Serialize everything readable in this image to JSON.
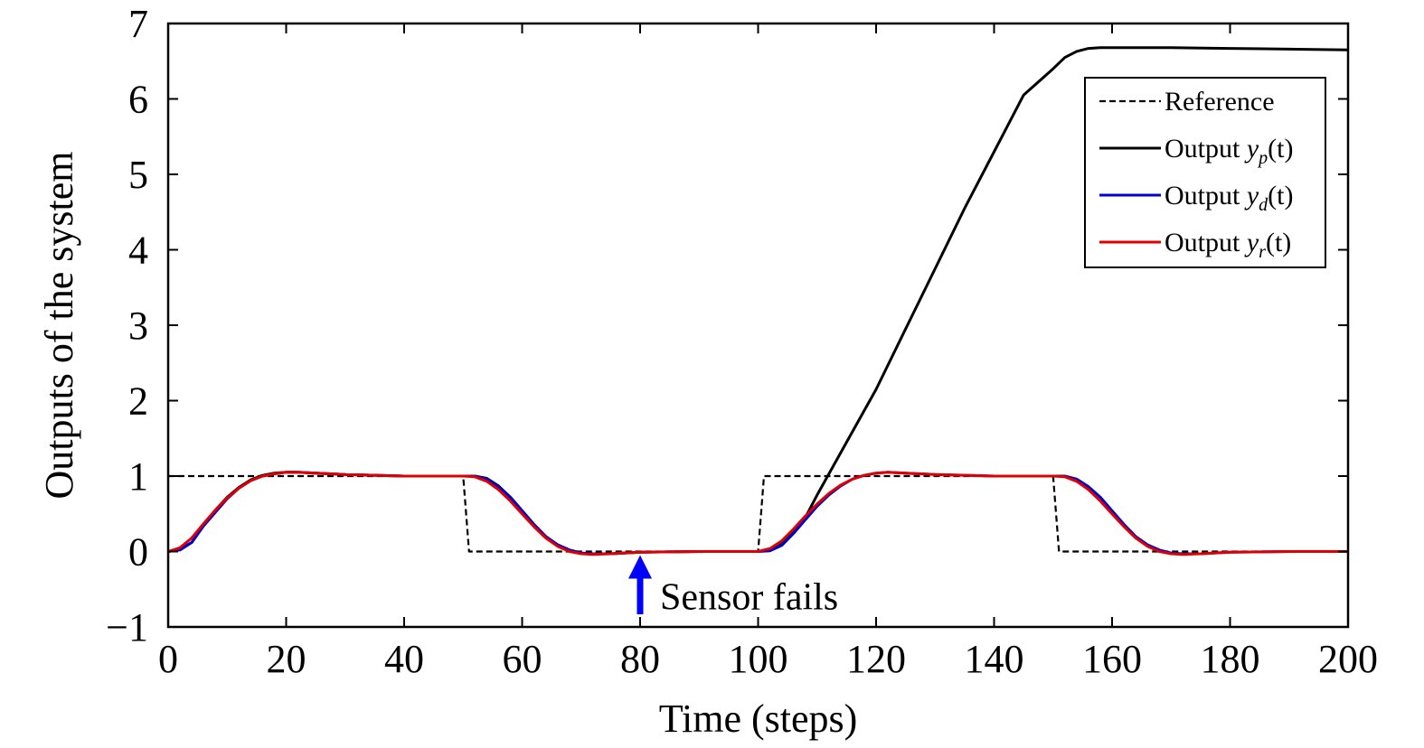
{
  "chart_data": {
    "type": "line",
    "title": "",
    "xlabel": "Time (steps)",
    "ylabel": "Outputs of the system",
    "xlim": [
      0,
      200
    ],
    "ylim": [
      -1,
      7
    ],
    "xticks": [
      0,
      20,
      40,
      60,
      80,
      100,
      120,
      140,
      160,
      180,
      200
    ],
    "yticks": [
      -1,
      0,
      1,
      2,
      3,
      4,
      5,
      6,
      7
    ],
    "xtick_labels": [
      "0",
      "20",
      "40",
      "60",
      "80",
      "100",
      "120",
      "140",
      "160",
      "180",
      "200"
    ],
    "ytick_labels": [
      "−1",
      "0",
      "1",
      "2",
      "3",
      "4",
      "5",
      "6",
      "7"
    ],
    "grid": false,
    "legend_position": "top-right",
    "series": [
      {
        "name": "Reference",
        "color": "#000000",
        "style": "dashed",
        "x": [
          0,
          50,
          51,
          100,
          101,
          150,
          151,
          200
        ],
        "y": [
          1,
          1,
          0,
          0,
          1,
          1,
          0,
          0
        ]
      },
      {
        "name": "Output y_p(t)",
        "color": "#000000",
        "style": "solid",
        "x": [
          0,
          2,
          4,
          6,
          8,
          10,
          12,
          14,
          16,
          18,
          20,
          22,
          25,
          30,
          40,
          50,
          52,
          54,
          56,
          58,
          60,
          62,
          64,
          66,
          68,
          70,
          72,
          75,
          80,
          90,
          100,
          102,
          104,
          106,
          108,
          110,
          115,
          120,
          125,
          130,
          135,
          140,
          145,
          150,
          152,
          154,
          156,
          158,
          160,
          165,
          170,
          180,
          190,
          200
        ],
        "y": [
          0,
          0.03,
          0.12,
          0.35,
          0.55,
          0.72,
          0.85,
          0.95,
          1.01,
          1.04,
          1.05,
          1.05,
          1.04,
          1.02,
          1.0,
          1.0,
          1.0,
          0.97,
          0.87,
          0.72,
          0.54,
          0.36,
          0.2,
          0.09,
          0.02,
          -0.02,
          -0.03,
          -0.03,
          -0.01,
          0.0,
          0.0,
          0.02,
          0.1,
          0.25,
          0.45,
          0.75,
          1.45,
          2.15,
          2.95,
          3.75,
          4.55,
          5.3,
          6.05,
          6.4,
          6.55,
          6.63,
          6.67,
          6.68,
          6.68,
          6.68,
          6.68,
          6.67,
          6.66,
          6.65
        ]
      },
      {
        "name": "Output y_d(t)",
        "color": "#0000cc",
        "style": "solid",
        "x": [
          0,
          2,
          4,
          6,
          8,
          10,
          12,
          14,
          16,
          18,
          20,
          22,
          25,
          30,
          40,
          50,
          52,
          54,
          56,
          58,
          60,
          62,
          64,
          66,
          68,
          70,
          72,
          75,
          80,
          90,
          100,
          102,
          104,
          106,
          108,
          110,
          112,
          114,
          116,
          118,
          120,
          122,
          125,
          130,
          140,
          150,
          152,
          154,
          156,
          158,
          160,
          162,
          164,
          166,
          168,
          170,
          172,
          175,
          180,
          190,
          200
        ],
        "y": [
          0,
          0.02,
          0.12,
          0.34,
          0.52,
          0.7,
          0.84,
          0.94,
          1.0,
          1.03,
          1.05,
          1.05,
          1.04,
          1.02,
          1.0,
          1.0,
          1.0,
          0.96,
          0.86,
          0.72,
          0.54,
          0.36,
          0.2,
          0.09,
          0.02,
          -0.02,
          -0.03,
          -0.03,
          -0.01,
          0.0,
          0.0,
          0.01,
          0.08,
          0.24,
          0.42,
          0.6,
          0.75,
          0.87,
          0.96,
          1.01,
          1.04,
          1.05,
          1.04,
          1.02,
          1.0,
          1.0,
          1.0,
          0.96,
          0.86,
          0.72,
          0.54,
          0.36,
          0.2,
          0.09,
          0.02,
          -0.02,
          -0.03,
          -0.03,
          -0.01,
          0.0,
          0.0
        ]
      },
      {
        "name": "Output y_r(t)",
        "color": "#e00000",
        "style": "solid",
        "x": [
          0,
          2,
          4,
          6,
          8,
          10,
          12,
          14,
          16,
          18,
          20,
          22,
          25,
          30,
          40,
          50,
          52,
          54,
          56,
          58,
          60,
          62,
          64,
          66,
          68,
          70,
          72,
          75,
          80,
          90,
          100,
          102,
          104,
          106,
          108,
          110,
          112,
          114,
          116,
          118,
          120,
          122,
          125,
          130,
          140,
          150,
          152,
          154,
          156,
          158,
          160,
          162,
          164,
          166,
          168,
          170,
          172,
          175,
          180,
          190,
          200
        ],
        "y": [
          0,
          0.05,
          0.18,
          0.37,
          0.55,
          0.71,
          0.84,
          0.94,
          1.0,
          1.03,
          1.05,
          1.05,
          1.04,
          1.02,
          1.0,
          1.0,
          0.99,
          0.93,
          0.82,
          0.67,
          0.5,
          0.33,
          0.18,
          0.07,
          0.0,
          -0.03,
          -0.04,
          -0.03,
          -0.01,
          0.0,
          0.0,
          0.04,
          0.14,
          0.3,
          0.47,
          0.63,
          0.77,
          0.88,
          0.96,
          1.01,
          1.04,
          1.05,
          1.04,
          1.02,
          1.0,
          1.0,
          0.99,
          0.93,
          0.82,
          0.67,
          0.5,
          0.33,
          0.18,
          0.07,
          0.0,
          -0.03,
          -0.04,
          -0.03,
          -0.01,
          0.0,
          0.0
        ]
      }
    ],
    "legend": [
      {
        "prefix": "Reference",
        "var": "",
        "sub": "",
        "suffix": ""
      },
      {
        "prefix": "Output ",
        "var": "y",
        "sub": "p",
        "suffix": "(t)"
      },
      {
        "prefix": "Output ",
        "var": "y",
        "sub": "d",
        "suffix": "(t)"
      },
      {
        "prefix": "Output ",
        "var": "y",
        "sub": "r",
        "suffix": "(t)"
      }
    ],
    "annotations": [
      {
        "text": "Sensor fails",
        "x": 80,
        "y": 0,
        "arrow_color": "#0000ff"
      }
    ]
  }
}
